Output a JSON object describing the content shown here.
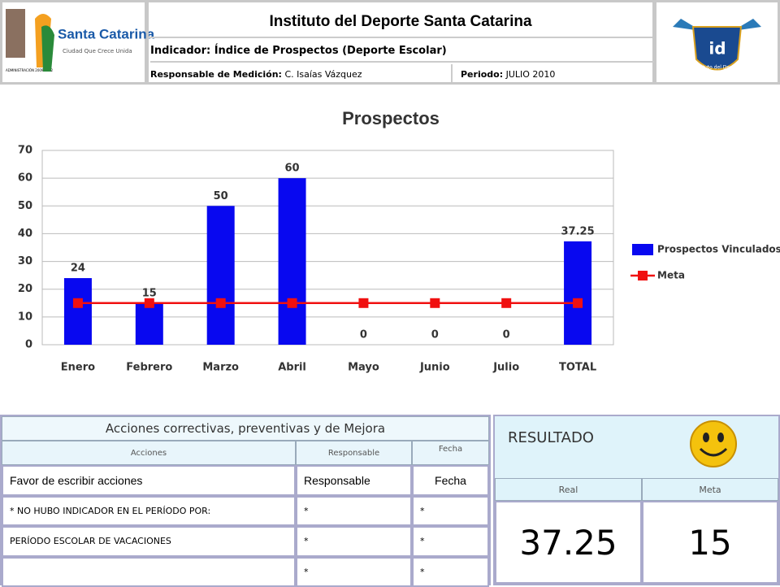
{
  "header": {
    "title": "Instituto del Deporte Santa Catarina",
    "indicator": "Indicador: Índice de Prospectos (Deporte Escolar)",
    "responsible_label": "Responsable de Medición:",
    "responsible": "C. Isaías Vázquez",
    "period_label": "Periodo:",
    "period": "JULIO 2010",
    "logo_left": {
      "name": "Santa Catarina",
      "slogan": "Ciudad Que Crece Unida",
      "admin": "ADMINISTRACIÓN 2009-2012"
    },
    "logo_right": {
      "initials": "id",
      "name": "Instituto del Deporte"
    }
  },
  "chart_data": {
    "type": "bar",
    "title": "Prospectos",
    "categories": [
      "Enero",
      "Febrero",
      "Marzo",
      "Abril",
      "Mayo",
      "Junio",
      "Julio",
      "TOTAL"
    ],
    "series": [
      {
        "name": "Prospectos Vinculados",
        "type": "bar",
        "color": "#0808f0",
        "values": [
          24,
          15,
          50,
          60,
          0,
          0,
          0,
          37.25
        ]
      },
      {
        "name": "Meta",
        "type": "line",
        "color": "#f01010",
        "values": [
          15,
          15,
          15,
          15,
          15,
          15,
          15,
          15
        ]
      }
    ],
    "ylim": [
      0,
      70
    ],
    "yticks": [
      0,
      10,
      20,
      30,
      40,
      50,
      60,
      70
    ],
    "grid": true,
    "legend": "right"
  },
  "actions": {
    "title": "Acciones correctivas, preventivas y de Mejora",
    "headers": [
      "Acciones",
      "Responsable",
      "Fecha"
    ],
    "rows": [
      {
        "accion": "Favor de escribir acciones",
        "responsable": "Responsable",
        "fecha": "Fecha"
      },
      {
        "accion": "* NO HUBO INDICADOR EN EL PERÍODO POR:",
        "responsable": "*",
        "fecha": "*"
      },
      {
        "accion": "PERÍODO ESCOLAR DE VACACIONES",
        "responsable": "*",
        "fecha": "*"
      },
      {
        "responsable": "*",
        "fecha": "*"
      }
    ]
  },
  "result": {
    "title": "RESULTADO",
    "real_label": "Real",
    "meta_label": "Meta",
    "real": 37.25,
    "meta": 15
  }
}
